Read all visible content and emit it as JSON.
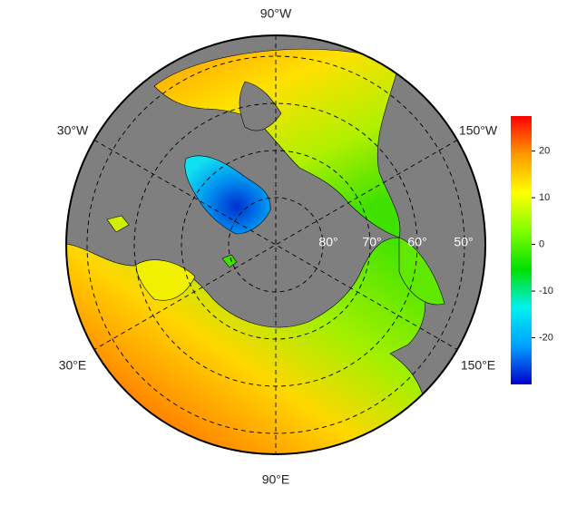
{
  "map": {
    "lon_labels": [
      "90°W",
      "30°W",
      "150°W",
      "30°E",
      "150°E",
      "90°E"
    ],
    "lat_labels": [
      "80°",
      "70°",
      "60°",
      "50°"
    ]
  },
  "colorbar": {
    "lim": [
      -30,
      27.5
    ],
    "ticks": [
      20,
      10,
      0,
      -10,
      -20
    ],
    "colors": [
      "#0000cc",
      "#00a0ff",
      "#00f0f0",
      "#00e000",
      "#80ff00",
      "#ffff00",
      "#ff9900",
      "#ff0000"
    ]
  }
}
